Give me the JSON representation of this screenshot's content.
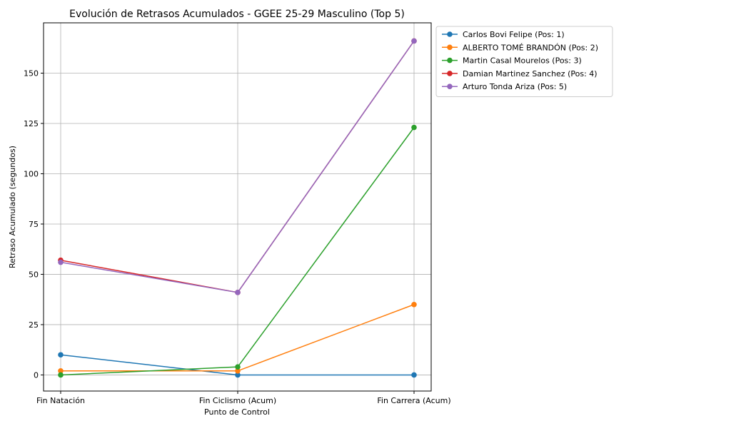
{
  "chart_data": {
    "type": "line",
    "title": "Evolución de Retrasos Acumulados - GGEE 25-29 Masculino (Top 5)",
    "xlabel": "Punto de Control",
    "ylabel": "Retraso Acumulado (segundos)",
    "categories": [
      "Fin Natación",
      "Fin Ciclismo (Acum)",
      "Fin Carrera (Acum)"
    ],
    "ylim": [
      -8,
      175
    ],
    "yticks": [
      0,
      25,
      50,
      75,
      100,
      125,
      150
    ],
    "ytick_labels": [
      "0",
      "25",
      "50",
      "75",
      "100",
      "125",
      "150"
    ],
    "grid": true,
    "legend_position": "outside-top-right",
    "series": [
      {
        "name": "Carlos Bovi Felipe (Pos: 1)",
        "color": "#1f77b4",
        "values": [
          10,
          0,
          0
        ]
      },
      {
        "name": "ALBERTO TOMÉ BRANDÓN (Pos: 2)",
        "color": "#ff7f0e",
        "values": [
          2,
          2,
          35
        ]
      },
      {
        "name": "Martin Casal Mourelos (Pos: 3)",
        "color": "#2ca02c",
        "values": [
          0,
          4,
          123
        ]
      },
      {
        "name": "Damian Martinez Sanchez (Pos: 4)",
        "color": "#d62728",
        "values": [
          57,
          41,
          166
        ]
      },
      {
        "name": "Arturo Tonda Ariza (Pos: 5)",
        "color": "#9467bd",
        "values": [
          56,
          41,
          166
        ]
      }
    ]
  }
}
